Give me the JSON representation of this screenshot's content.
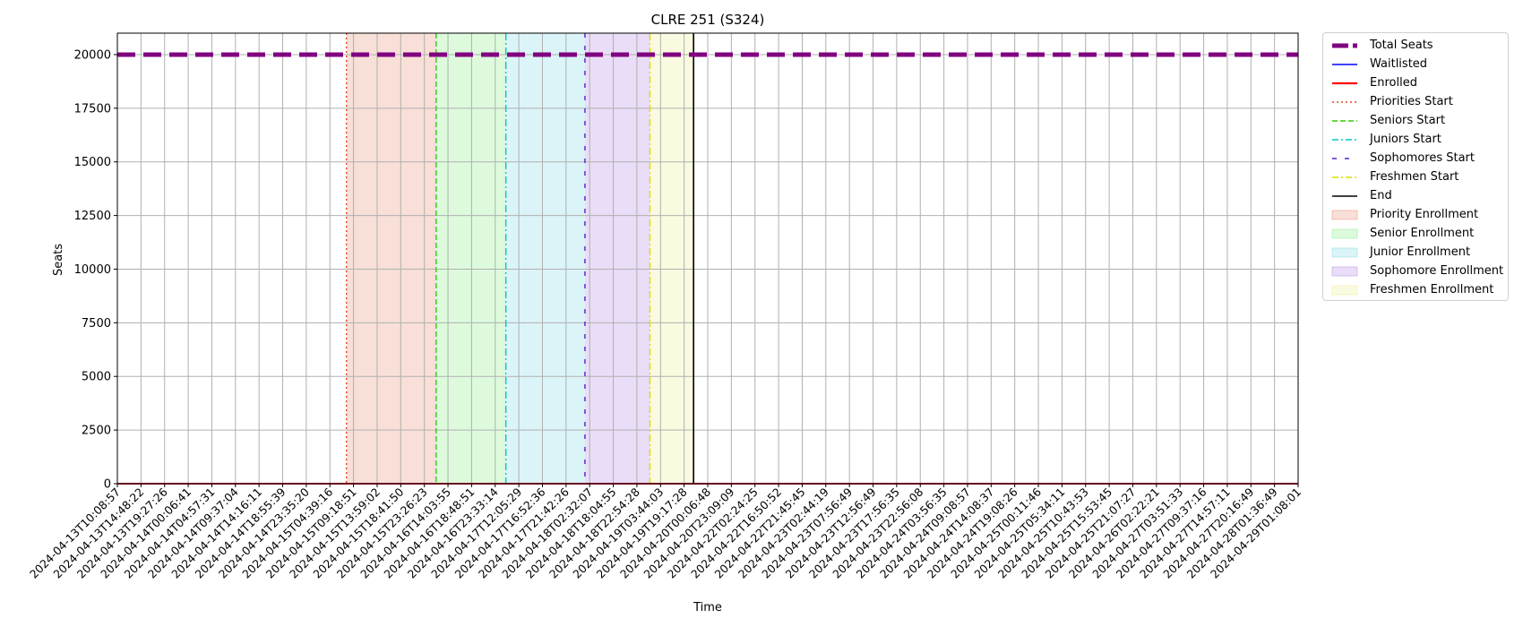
{
  "chart_data": {
    "type": "line",
    "title": "CLRE 251 (S324)",
    "xlabel": "Time",
    "ylabel": "Seats",
    "ylim": [
      0,
      21000
    ],
    "yticks": [
      0,
      2500,
      5000,
      7500,
      10000,
      12500,
      15000,
      17500,
      20000
    ],
    "grid": true,
    "legend_position": "outside-right",
    "x": [
      "2024-04-13T10:08:57",
      "2024-04-13T14:48:22",
      "2024-04-13T19:27:26",
      "2024-04-14T00:06:41",
      "2024-04-14T04:57:31",
      "2024-04-14T09:37:04",
      "2024-04-14T14:16:11",
      "2024-04-14T18:55:39",
      "2024-04-14T23:35:20",
      "2024-04-15T04:39:16",
      "2024-04-15T09:18:51",
      "2024-04-15T13:59:02",
      "2024-04-15T18:41:50",
      "2024-04-15T23:26:23",
      "2024-04-16T14:03:55",
      "2024-04-16T18:48:51",
      "2024-04-16T23:33:14",
      "2024-04-17T12:05:29",
      "2024-04-17T16:52:36",
      "2024-04-17T21:42:26",
      "2024-04-18T02:32:07",
      "2024-04-18T18:04:55",
      "2024-04-18T22:54:28",
      "2024-04-19T03:44:03",
      "2024-04-19T19:17:28",
      "2024-04-20T00:06:48",
      "2024-04-20T23:09:09",
      "2024-04-22T02:24:25",
      "2024-04-22T16:50:52",
      "2024-04-22T21:45:45",
      "2024-04-23T02:44:19",
      "2024-04-23T07:56:49",
      "2024-04-23T12:56:49",
      "2024-04-23T17:56:35",
      "2024-04-23T22:56:08",
      "2024-04-24T03:56:35",
      "2024-04-24T09:08:57",
      "2024-04-24T14:08:37",
      "2024-04-24T19:08:26",
      "2024-04-25T00:11:46",
      "2024-04-25T05:34:11",
      "2024-04-25T10:43:53",
      "2024-04-25T15:53:45",
      "2024-04-25T21:07:27",
      "2024-04-26T02:22:21",
      "2024-04-27T03:51:33",
      "2024-04-27T09:37:16",
      "2024-04-27T14:57:11",
      "2024-04-27T20:16:49",
      "2024-04-28T01:36:49",
      "2024-04-29T01:08:01"
    ],
    "series": [
      {
        "name": "Total Seats",
        "color": "#800080",
        "style": "dashed-thick",
        "value": 20000
      },
      {
        "name": "Waitlisted",
        "color": "#0000ff",
        "style": "solid",
        "value": 0
      },
      {
        "name": "Enrolled",
        "color": "#ff0000",
        "style": "solid",
        "value": 0
      }
    ],
    "markers": [
      {
        "name": "Priorities Start",
        "color": "#e8472a",
        "style": "dotted",
        "at": 9.7
      },
      {
        "name": "Seniors Start",
        "color": "#33cc00",
        "style": "dashed",
        "at": 13.5
      },
      {
        "name": "Juniors Start",
        "color": "#00c8c8",
        "style": "dashdot",
        "at": 16.45
      },
      {
        "name": "Sophomores Start",
        "color": "#5522cc",
        "style": "loosedash",
        "at": 19.8
      },
      {
        "name": "Freshmen Start",
        "color": "#dddd00",
        "style": "dashdot",
        "at": 22.55
      },
      {
        "name": "End",
        "color": "#000000",
        "style": "solid",
        "at": 24.4
      }
    ],
    "spans": [
      {
        "name": "Priority Enrollment",
        "color": "#e9967a",
        "from": 9.7,
        "to": 13.5
      },
      {
        "name": "Senior Enrollment",
        "color": "#90ee90",
        "from": 13.5,
        "to": 16.45
      },
      {
        "name": "Junior Enrollment",
        "color": "#87dce6",
        "from": 16.45,
        "to": 19.8
      },
      {
        "name": "Sophomore Enrollment",
        "color": "#b58fe6",
        "from": 19.8,
        "to": 22.55
      },
      {
        "name": "Freshmen Enrollment",
        "color": "#eeee99",
        "from": 22.55,
        "to": 24.4
      }
    ]
  }
}
